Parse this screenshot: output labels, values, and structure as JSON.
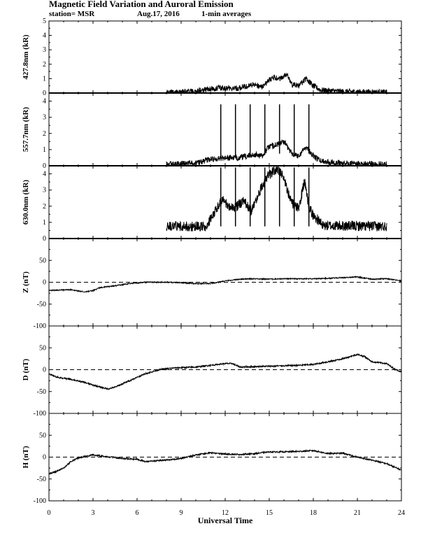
{
  "header": {
    "title": "Magnetic Field Variation and Auroral Emission",
    "station": "station= MSR",
    "date": "Aug.17, 2016",
    "averaging": "1-min averages"
  },
  "chart_data": [
    {
      "type": "line",
      "ylabel": "427.8nm (kR)",
      "ylim": [
        0,
        5
      ],
      "yticks": [
        0,
        1,
        2,
        3,
        4,
        5
      ],
      "x_range_hours": [
        0,
        24
      ],
      "noise": 0.04,
      "spikes": [],
      "series": [
        {
          "points": [
            [
              8,
              0.05
            ],
            [
              10,
              0.1
            ],
            [
              11,
              0.3
            ],
            [
              12,
              0.35
            ],
            [
              13,
              0.35
            ],
            [
              14,
              0.6
            ],
            [
              14.5,
              0.4
            ],
            [
              15.2,
              1.1
            ],
            [
              15.7,
              1.0
            ],
            [
              16.2,
              1.3
            ],
            [
              16.5,
              0.6
            ],
            [
              17,
              0.5
            ],
            [
              17.5,
              1.0
            ],
            [
              18,
              0.5
            ],
            [
              18.5,
              0.2
            ],
            [
              20,
              0.1
            ],
            [
              23,
              0.05
            ]
          ]
        }
      ]
    },
    {
      "type": "line",
      "ylabel": "557.7nm (kR)",
      "ylim": [
        0,
        4.5
      ],
      "yticks": [
        0,
        1,
        2,
        3,
        4
      ],
      "x_range_hours": [
        0,
        24
      ],
      "noise": 0.04,
      "spikes": [
        11.7,
        12.7,
        13.7,
        14.7,
        15.7,
        16.7,
        17.7
      ],
      "spike_top": 3.8,
      "series": [
        {
          "points": [
            [
              8,
              0.1
            ],
            [
              10,
              0.15
            ],
            [
              11,
              0.4
            ],
            [
              12,
              0.5
            ],
            [
              13,
              0.5
            ],
            [
              14,
              0.7
            ],
            [
              14.5,
              0.6
            ],
            [
              15,
              1.2
            ],
            [
              15.5,
              1.3
            ],
            [
              16,
              1.5
            ],
            [
              16.5,
              0.8
            ],
            [
              17,
              0.6
            ],
            [
              17.5,
              1.2
            ],
            [
              18,
              0.6
            ],
            [
              18.5,
              0.3
            ],
            [
              20,
              0.15
            ],
            [
              23,
              0.1
            ]
          ]
        }
      ]
    },
    {
      "type": "line",
      "ylabel": "630.0nm (kR)",
      "ylim": [
        0,
        4.5
      ],
      "yticks": [
        0,
        1,
        2,
        3,
        4
      ],
      "x_range_hours": [
        0,
        24
      ],
      "noise": 0.07,
      "spikes": [
        11.7,
        12.7,
        13.7,
        14.7,
        15.7,
        16.7,
        17.7
      ],
      "spike_top": 4.4,
      "series": [
        {
          "points": [
            [
              8,
              0.75
            ],
            [
              10.8,
              0.75
            ],
            [
              11,
              1.3
            ],
            [
              11.5,
              2.0
            ],
            [
              11.8,
              2.4
            ],
            [
              12.3,
              1.9
            ],
            [
              12.8,
              2.0
            ],
            [
              13.3,
              2.3
            ],
            [
              13.8,
              1.7
            ],
            [
              14.2,
              2.6
            ],
            [
              14.6,
              3.4
            ],
            [
              15,
              4.0
            ],
            [
              15.5,
              4.3
            ],
            [
              16,
              3.8
            ],
            [
              16.5,
              2.2
            ],
            [
              17,
              1.8
            ],
            [
              17.4,
              3.6
            ],
            [
              17.7,
              2.0
            ],
            [
              18,
              1.4
            ],
            [
              18.4,
              1.1
            ],
            [
              18.6,
              0.8
            ],
            [
              23,
              0.75
            ]
          ]
        }
      ]
    },
    {
      "type": "line",
      "ylabel": "Z (nT)",
      "ylim": [
        -100,
        100
      ],
      "yticks": [
        -100,
        -50,
        0,
        50
      ],
      "x_range_hours": [
        0,
        24
      ],
      "noise": 0.6,
      "dashed_zero": true,
      "spikes": [],
      "series": [
        {
          "points": [
            [
              0,
              -19
            ],
            [
              1.5,
              -17
            ],
            [
              2,
              -20
            ],
            [
              2.5,
              -22
            ],
            [
              3,
              -19
            ],
            [
              3.5,
              -12
            ],
            [
              4.5,
              -8
            ],
            [
              5.5,
              -3
            ],
            [
              6.5,
              0
            ],
            [
              8,
              0
            ],
            [
              9,
              -1
            ],
            [
              10,
              -3
            ],
            [
              11,
              -3
            ],
            [
              12,
              3
            ],
            [
              13,
              7
            ],
            [
              14,
              8
            ],
            [
              15,
              7
            ],
            [
              16,
              8
            ],
            [
              18,
              8
            ],
            [
              19,
              9
            ],
            [
              21,
              12
            ],
            [
              22,
              7
            ],
            [
              23,
              8
            ],
            [
              24,
              3
            ]
          ]
        }
      ]
    },
    {
      "type": "line",
      "ylabel": "D (nT)",
      "ylim": [
        -100,
        100
      ],
      "yticks": [
        -100,
        -50,
        0,
        50
      ],
      "x_range_hours": [
        0,
        24
      ],
      "noise": 0.8,
      "dashed_zero": true,
      "spikes": [],
      "series": [
        {
          "points": [
            [
              0,
              -10
            ],
            [
              0.5,
              -17
            ],
            [
              1.5,
              -22
            ],
            [
              2.5,
              -30
            ],
            [
              3.5,
              -40
            ],
            [
              4,
              -44
            ],
            [
              4.5,
              -40
            ],
            [
              5.5,
              -25
            ],
            [
              6.5,
              -10
            ],
            [
              7.5,
              0
            ],
            [
              8.5,
              4
            ],
            [
              10,
              6
            ],
            [
              11,
              10
            ],
            [
              12,
              14
            ],
            [
              12.5,
              14
            ],
            [
              13,
              6
            ],
            [
              14,
              7
            ],
            [
              15,
              8
            ],
            [
              17,
              10
            ],
            [
              18,
              12
            ],
            [
              19,
              18
            ],
            [
              20,
              25
            ],
            [
              21,
              35
            ],
            [
              21.5,
              30
            ],
            [
              22,
              18
            ],
            [
              23,
              14
            ],
            [
              23.5,
              2
            ],
            [
              24,
              -5
            ]
          ]
        }
      ]
    },
    {
      "type": "line",
      "ylabel": "H (nT)",
      "ylim": [
        -100,
        100
      ],
      "yticks": [
        -100,
        -50,
        0,
        50
      ],
      "x_range_hours": [
        0,
        24
      ],
      "noise": 0.8,
      "dashed_zero": true,
      "spikes": [],
      "series": [
        {
          "points": [
            [
              0,
              -38
            ],
            [
              0.5,
              -33
            ],
            [
              1,
              -25
            ],
            [
              1.5,
              -10
            ],
            [
              2,
              -2
            ],
            [
              2.5,
              2
            ],
            [
              3,
              5
            ],
            [
              4,
              1
            ],
            [
              5,
              -3
            ],
            [
              6,
              -5
            ],
            [
              6.5,
              -10
            ],
            [
              7.5,
              -8
            ],
            [
              9,
              -3
            ],
            [
              10,
              5
            ],
            [
              11,
              10
            ],
            [
              12,
              7
            ],
            [
              13,
              6
            ],
            [
              14,
              8
            ],
            [
              15,
              12
            ],
            [
              16,
              12
            ],
            [
              17,
              13
            ],
            [
              18,
              15
            ],
            [
              19,
              8
            ],
            [
              20,
              9
            ],
            [
              21,
              0
            ],
            [
              22,
              -7
            ],
            [
              23,
              -15
            ],
            [
              24,
              -30
            ]
          ]
        }
      ]
    }
  ],
  "x_axis": {
    "label": "Universal Time",
    "range": [
      0,
      24
    ],
    "ticks": [
      "0",
      "3",
      "6",
      "9",
      "12",
      "15",
      "18",
      "21",
      "24"
    ]
  }
}
